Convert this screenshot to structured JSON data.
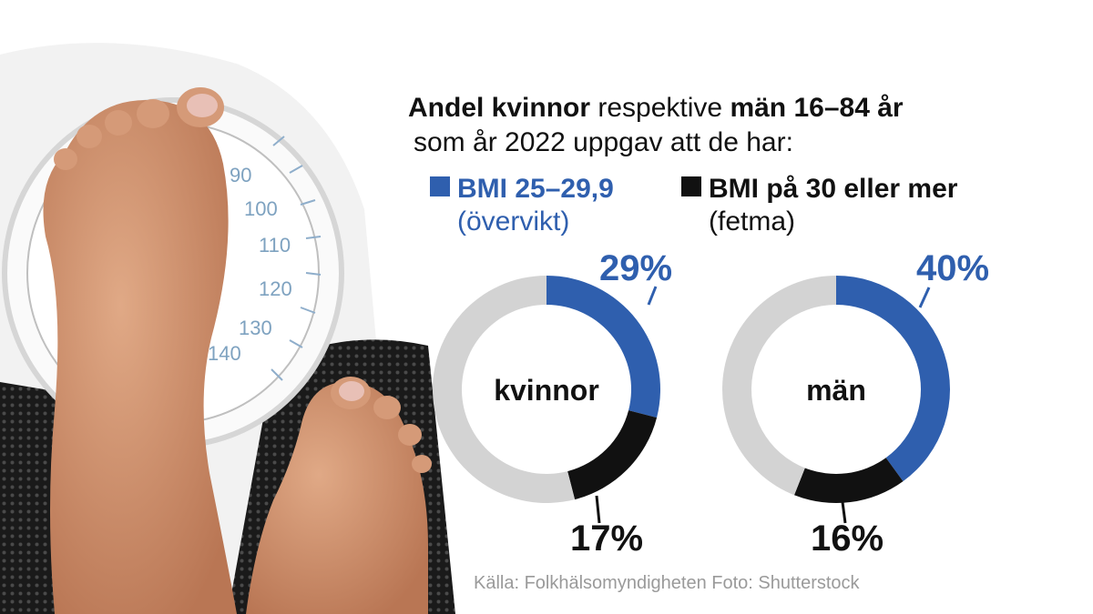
{
  "title": {
    "part1_bold": "Andel kvinnor",
    "part2": " respektive ",
    "part3_bold": "män 16–84 år",
    "line2": "som år 2022 uppgav att de har:"
  },
  "legend": [
    {
      "name": "BMI 25–29,9",
      "sub": "(övervikt)",
      "color": "#2f5fae"
    },
    {
      "name": "BMI på 30 eller mer",
      "sub": "(fetma)",
      "color": "#111111"
    }
  ],
  "chart_data": [
    {
      "type": "pie",
      "center_label": "kvinnor",
      "slices": [
        {
          "label": "BMI 25–29,9 (övervikt)",
          "value": 29,
          "display": "29%",
          "color": "#2f5fae"
        },
        {
          "label": "BMI på 30 eller mer (fetma)",
          "value": 17,
          "display": "17%",
          "color": "#111111"
        },
        {
          "label": "",
          "value": 54,
          "display": "",
          "color": "#d3d3d3"
        }
      ]
    },
    {
      "type": "pie",
      "center_label": "män",
      "slices": [
        {
          "label": "BMI 25–29,9 (övervikt)",
          "value": 40,
          "display": "40%",
          "color": "#2f5fae"
        },
        {
          "label": "BMI på 30 eller mer (fetma)",
          "value": 16,
          "display": "16%",
          "color": "#111111"
        },
        {
          "label": "",
          "value": 44,
          "display": "",
          "color": "#d3d3d3"
        }
      ]
    }
  ],
  "source": "Källa: Folkhälsomyndigheten Foto: Shutterstock",
  "photo": {
    "icon": "feet-on-bathroom-scale-photo",
    "scale_numbers": [
      "90",
      "100",
      "110",
      "120",
      "130",
      "140"
    ],
    "scale_unit": "kg"
  }
}
